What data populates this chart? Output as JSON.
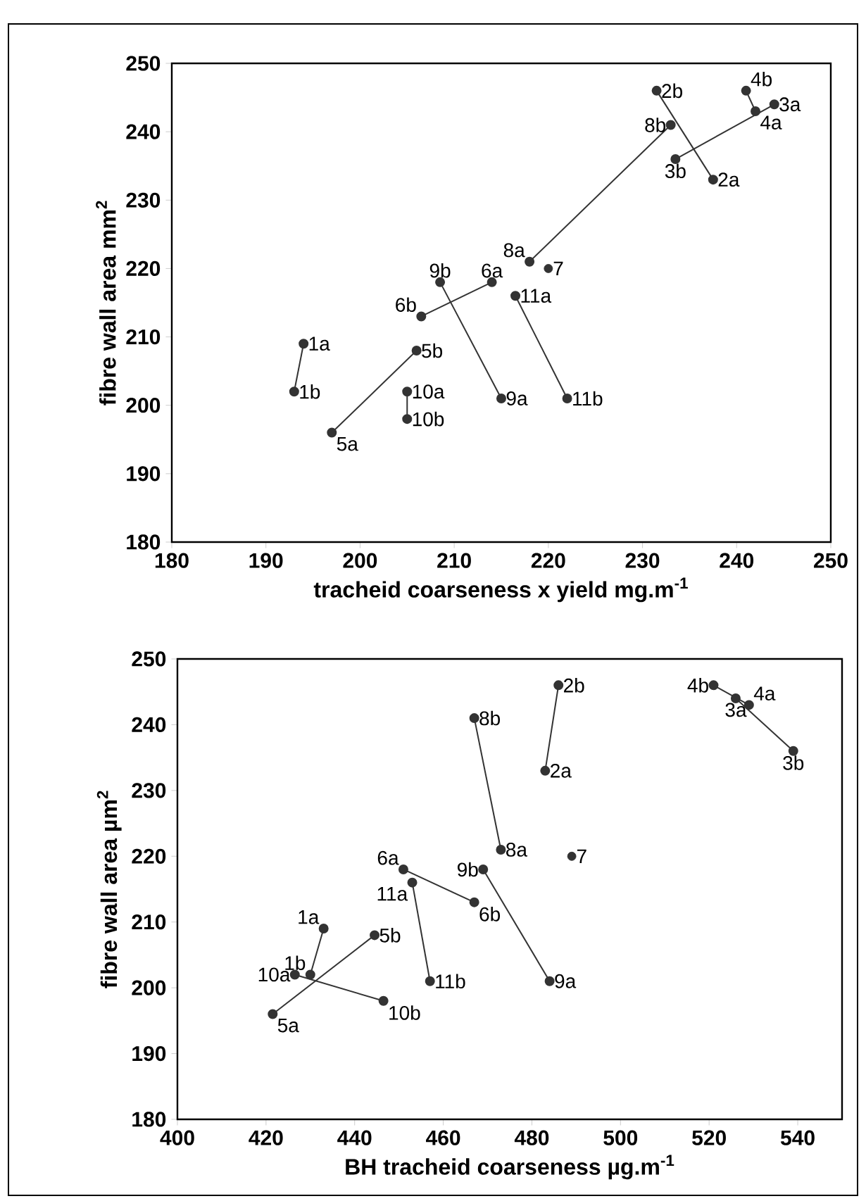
{
  "chart_data": [
    {
      "type": "line",
      "xlabel": "tracheid coarseness x yield  mg.m$^{-1}$",
      "ylabel": "fibre wall area  mm$^{2}$",
      "xlim": [
        180,
        250
      ],
      "ylim": [
        180,
        250
      ],
      "xticks": [
        180,
        190,
        200,
        210,
        220,
        230,
        240,
        250
      ],
      "yticks": [
        180,
        190,
        200,
        210,
        220,
        230,
        240,
        250
      ],
      "marker": "circle",
      "series": [
        {
          "color": "#333333",
          "x": [
            194,
            193
          ],
          "values": [
            209,
            202
          ]
        },
        {
          "color": "#333333",
          "x": [
            237.5,
            231.5
          ],
          "values": [
            233,
            246
          ]
        },
        {
          "color": "#333333",
          "x": [
            244,
            233.5
          ],
          "values": [
            244,
            236
          ]
        },
        {
          "color": "#333333",
          "x": [
            242,
            241
          ],
          "values": [
            243,
            246
          ]
        },
        {
          "color": "#333333",
          "x": [
            197,
            206
          ],
          "values": [
            196,
            208
          ]
        },
        {
          "color": "#333333",
          "x": [
            214,
            206.5
          ],
          "values": [
            218,
            213
          ]
        },
        {
          "color": "#333333",
          "type": "scatter",
          "x": [
            220
          ],
          "values": [
            220
          ]
        },
        {
          "color": "#333333",
          "x": [
            218,
            233
          ],
          "values": [
            221,
            241
          ]
        },
        {
          "color": "#333333",
          "x": [
            215,
            208.5
          ],
          "values": [
            201,
            218
          ]
        },
        {
          "color": "#333333",
          "x": [
            205,
            205
          ],
          "values": [
            202,
            198
          ]
        },
        {
          "color": "#333333",
          "x": [
            216.5,
            222
          ],
          "values": [
            216,
            201
          ]
        }
      ],
      "annotations": [
        {
          "text": "1a",
          "x": 194,
          "y": 209
        },
        {
          "text": "1b",
          "x": 193,
          "y": 202
        },
        {
          "text": "2a",
          "x": 237.5,
          "y": 233
        },
        {
          "text": "2b",
          "x": 231.5,
          "y": 246
        },
        {
          "text": "3a",
          "x": 244,
          "y": 244
        },
        {
          "text": "3b",
          "x": 233.5,
          "y": 236
        },
        {
          "text": "4a",
          "x": 242,
          "y": 243
        },
        {
          "text": "4b",
          "x": 241,
          "y": 246
        },
        {
          "text": "5a",
          "x": 197,
          "y": 196
        },
        {
          "text": "5b",
          "x": 206,
          "y": 208
        },
        {
          "text": "6a",
          "x": 214,
          "y": 218
        },
        {
          "text": "6b",
          "x": 206.5,
          "y": 213
        },
        {
          "text": "7",
          "x": 220,
          "y": 220
        },
        {
          "text": "8a",
          "x": 218,
          "y": 221
        },
        {
          "text": "8b",
          "x": 233,
          "y": 241
        },
        {
          "text": "9a",
          "x": 215,
          "y": 201
        },
        {
          "text": "9b",
          "x": 208.5,
          "y": 218
        },
        {
          "text": "10a",
          "x": 205,
          "y": 202
        },
        {
          "text": "10b",
          "x": 205,
          "y": 198
        },
        {
          "text": "11a",
          "x": 216.5,
          "y": 216
        },
        {
          "text": "11b",
          "x": 222,
          "y": 201
        }
      ]
    },
    {
      "type": "line",
      "xlabel": "BH tracheid coarseness  µg.m$^{-1}$",
      "ylabel": "fibre wall area  µm$^{2}$",
      "xlim": [
        400,
        550
      ],
      "ylim": [
        180,
        250
      ],
      "xticks": [
        400,
        420,
        440,
        460,
        480,
        500,
        520,
        540
      ],
      "yticks": [
        180,
        190,
        200,
        210,
        220,
        230,
        240,
        250
      ],
      "marker": "circle",
      "series": [
        {
          "color": "#333333",
          "x": [
            433,
            430
          ],
          "values": [
            209,
            202
          ]
        },
        {
          "color": "#333333",
          "x": [
            483,
            486
          ],
          "values": [
            233,
            246
          ]
        },
        {
          "color": "#333333",
          "x": [
            526,
            539
          ],
          "values": [
            244,
            236
          ]
        },
        {
          "color": "#333333",
          "x": [
            529,
            521
          ],
          "values": [
            243,
            246
          ]
        },
        {
          "color": "#333333",
          "x": [
            421.5,
            444.5
          ],
          "values": [
            196,
            208
          ]
        },
        {
          "color": "#333333",
          "x": [
            451,
            467
          ],
          "values": [
            218,
            213
          ]
        },
        {
          "color": "#333333",
          "type": "scatter",
          "x": [
            489
          ],
          "values": [
            220
          ]
        },
        {
          "color": "#333333",
          "x": [
            473,
            467
          ],
          "values": [
            221,
            241
          ]
        },
        {
          "color": "#333333",
          "x": [
            484,
            469
          ],
          "values": [
            201,
            218
          ]
        },
        {
          "color": "#333333",
          "x": [
            426.5,
            446.5
          ],
          "values": [
            202,
            198
          ]
        },
        {
          "color": "#333333",
          "x": [
            453,
            457
          ],
          "values": [
            216,
            201
          ]
        }
      ],
      "annotations": [
        {
          "text": "1a",
          "x": 433,
          "y": 209
        },
        {
          "text": "1b",
          "x": 430,
          "y": 202
        },
        {
          "text": "2a",
          "x": 483,
          "y": 233
        },
        {
          "text": "2b",
          "x": 486,
          "y": 246
        },
        {
          "text": "3a",
          "x": 526,
          "y": 244
        },
        {
          "text": "3b",
          "x": 539,
          "y": 236
        },
        {
          "text": "4a",
          "x": 529,
          "y": 243
        },
        {
          "text": "4b",
          "x": 521,
          "y": 246
        },
        {
          "text": "5a",
          "x": 421.5,
          "y": 196
        },
        {
          "text": "5b",
          "x": 444.5,
          "y": 208
        },
        {
          "text": "6a",
          "x": 451,
          "y": 218
        },
        {
          "text": "6b",
          "x": 467,
          "y": 213
        },
        {
          "text": "7",
          "x": 489,
          "y": 220
        },
        {
          "text": "8a",
          "x": 473,
          "y": 221
        },
        {
          "text": "8b",
          "x": 467,
          "y": 241
        },
        {
          "text": "9a",
          "x": 484,
          "y": 201
        },
        {
          "text": "9b",
          "x": 469,
          "y": 218
        },
        {
          "text": "10a",
          "x": 426.5,
          "y": 202
        },
        {
          "text": "10b",
          "x": 446.5,
          "y": 198
        },
        {
          "text": "11a",
          "x": 453,
          "y": 216
        },
        {
          "text": "11b",
          "x": 457,
          "y": 201
        }
      ]
    }
  ]
}
